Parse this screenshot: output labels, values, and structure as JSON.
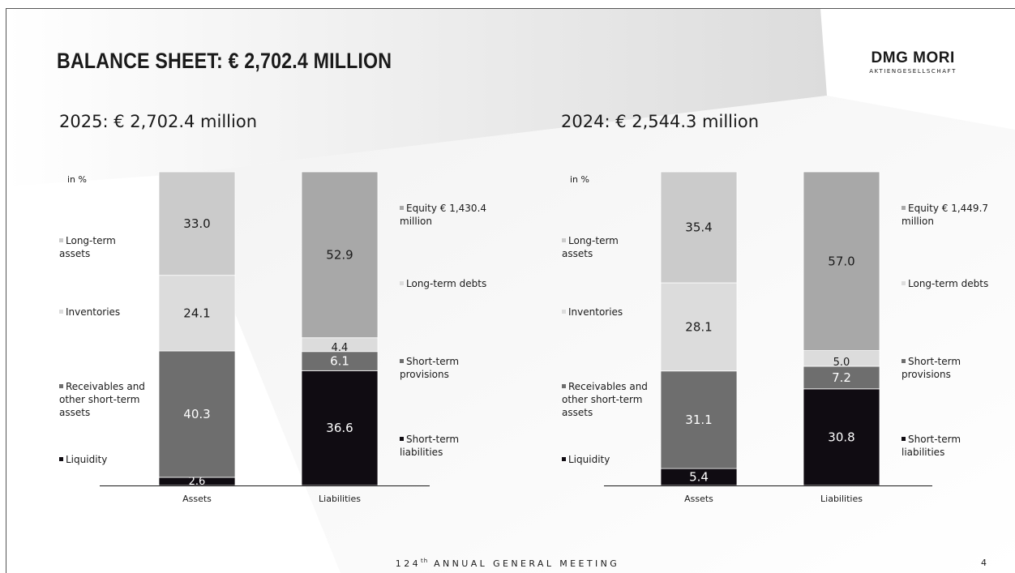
{
  "title": "BALANCE SHEET: € 2,702.4 MILLION",
  "logo": {
    "name": "DMG MORI",
    "sub": "AKTIENGESELLSCHAFT"
  },
  "footer": {
    "number": "124",
    "suffix": "th",
    "text": "ANNUAL GENERAL MEETING"
  },
  "page_number": "4",
  "colors": {
    "liquidity": "#100c12",
    "receivables": "#6e6e6e",
    "inventories": "#dcdcdc",
    "long_term_assets": "#cbcbcb",
    "short_term_liabilities": "#100c12",
    "short_term_provisions": "#6e6e6e",
    "long_term_debts": "#dcdcdc",
    "equity": "#a8a8a8"
  },
  "panels": [
    {
      "subtitle": "2025: € 2,702.4 million",
      "unit": "in %",
      "asset_legend": [
        "Long-term assets",
        "Inventories",
        "Receivables and other short-term assets",
        "Liquidity"
      ],
      "liability_legend": [
        "Equity € 1,430.4 million",
        "Long-term debts",
        "Short-term provisions",
        "Short-term liabilities"
      ]
    },
    {
      "subtitle": "2024: € 2,544.3 million",
      "unit": "in %",
      "asset_legend": [
        "Long-term assets",
        "Inventories",
        "Receivables and other short-term assets",
        "Liquidity"
      ],
      "liability_legend": [
        "Equity € 1,449.7 million",
        "Long-term debts",
        "Short-term provisions",
        "Short-term liabilities"
      ]
    }
  ],
  "chart_data": [
    {
      "type": "bar",
      "stacked": true,
      "categories": [
        "Assets",
        "Liabilities"
      ],
      "ylabel": "in %",
      "ylim": [
        0,
        100
      ],
      "series": [
        {
          "name": "Liquidity",
          "stack": "Assets",
          "value": 2.6
        },
        {
          "name": "Receivables and other short-term assets",
          "stack": "Assets",
          "value": 40.3
        },
        {
          "name": "Inventories",
          "stack": "Assets",
          "value": 24.1
        },
        {
          "name": "Long-term assets",
          "stack": "Assets",
          "value": 33.0
        },
        {
          "name": "Short-term liabilities",
          "stack": "Liabilities",
          "value": 36.6
        },
        {
          "name": "Short-term provisions",
          "stack": "Liabilities",
          "value": 6.1
        },
        {
          "name": "Long-term debts",
          "stack": "Liabilities",
          "value": 4.4
        },
        {
          "name": "Equity € 1,430.4 million",
          "stack": "Liabilities",
          "value": 52.9
        }
      ]
    },
    {
      "type": "bar",
      "stacked": true,
      "categories": [
        "Assets",
        "Liabilities"
      ],
      "ylabel": "in %",
      "ylim": [
        0,
        100
      ],
      "series": [
        {
          "name": "Liquidity",
          "stack": "Assets",
          "value": 5.4
        },
        {
          "name": "Receivables and other short-term assets",
          "stack": "Assets",
          "value": 31.1
        },
        {
          "name": "Inventories",
          "stack": "Assets",
          "value": 28.1
        },
        {
          "name": "Long-term assets",
          "stack": "Assets",
          "value": 35.4
        },
        {
          "name": "Short-term liabilities",
          "stack": "Liabilities",
          "value": 30.8
        },
        {
          "name": "Short-term provisions",
          "stack": "Liabilities",
          "value": 7.2
        },
        {
          "name": "Long-term debts",
          "stack": "Liabilities",
          "value": 5.0
        },
        {
          "name": "Equity € 1,449.7 million",
          "stack": "Liabilities",
          "value": 57.0
        }
      ]
    }
  ]
}
